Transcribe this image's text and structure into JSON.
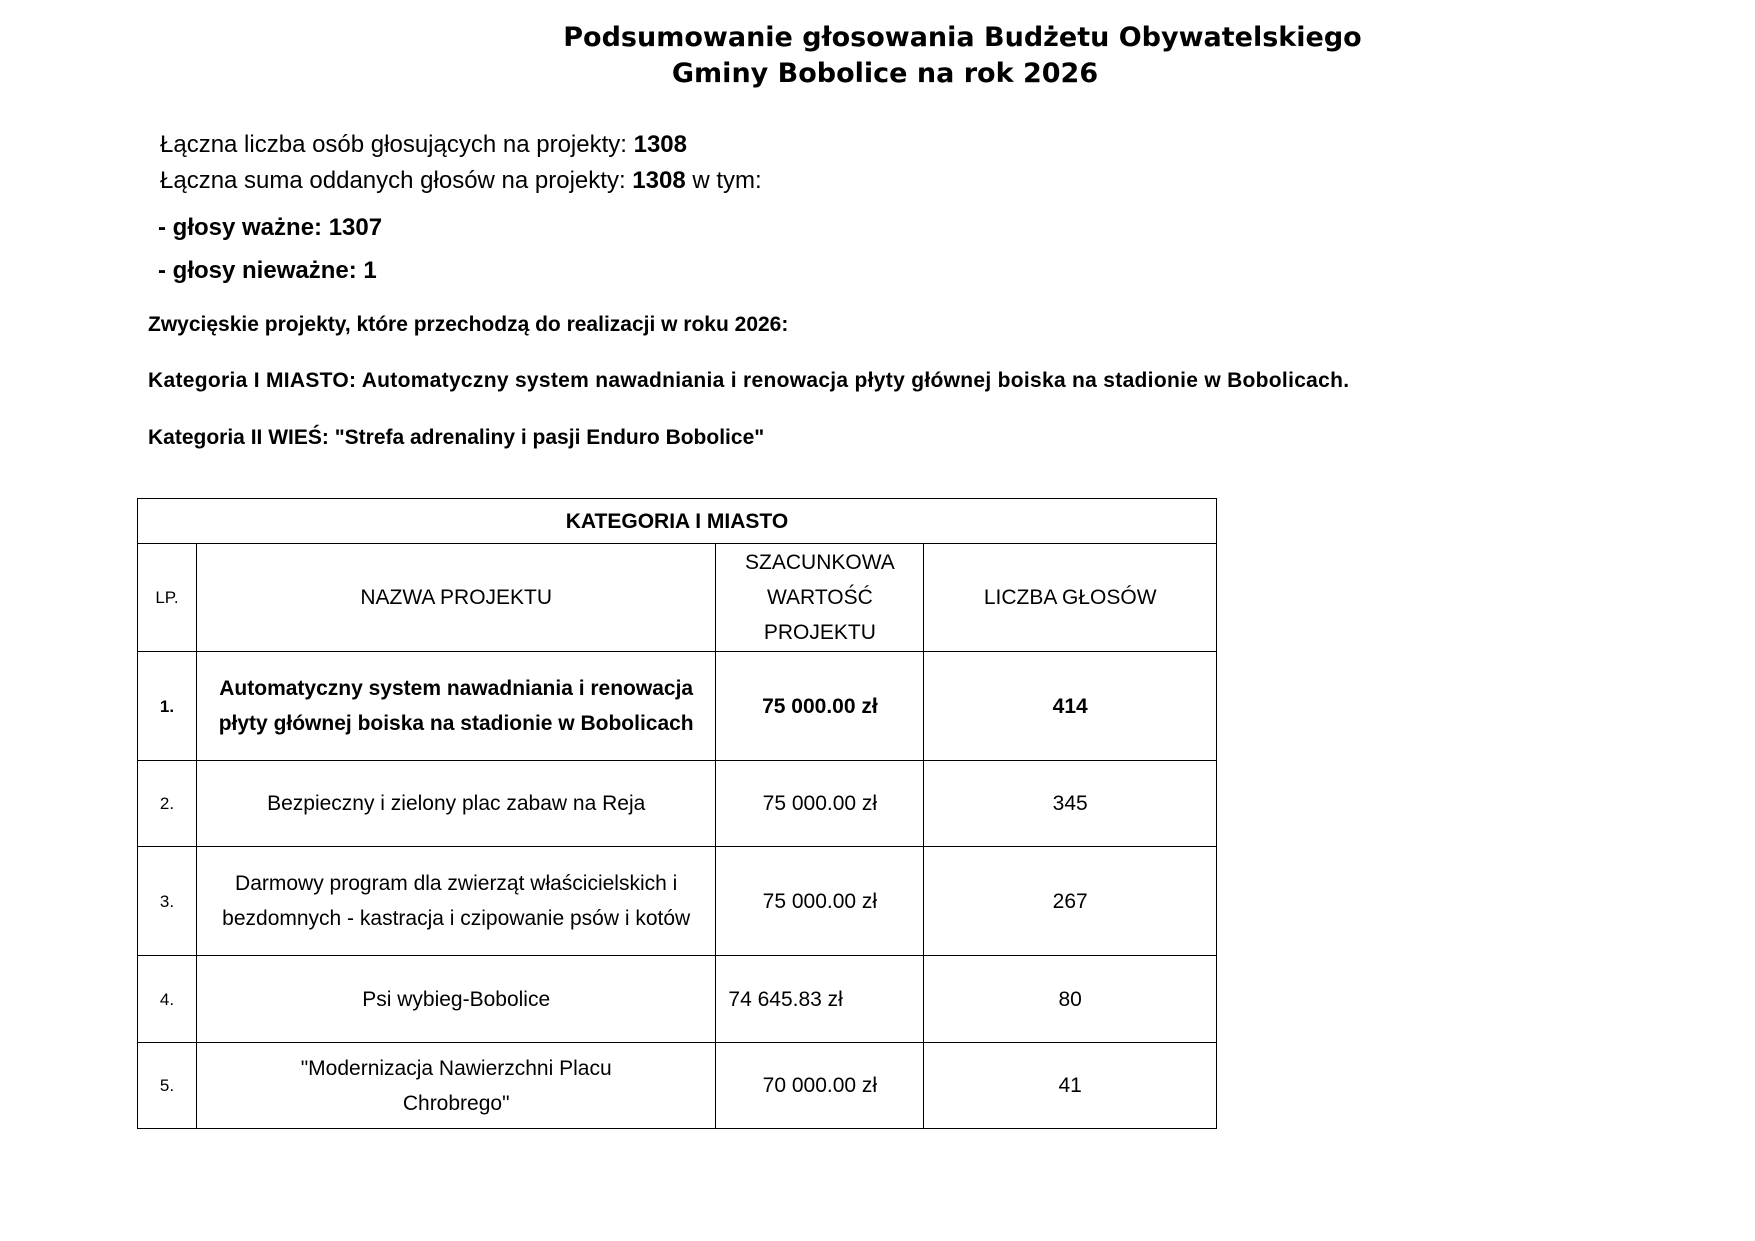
{
  "title": {
    "line1": "Podsumowanie głosowania Budżetu Obywatelskiego",
    "line2": "Gminy Bobolice na rok 2026"
  },
  "summary": {
    "voters_label": "Łączna liczba osób głosujących na projekty: ",
    "voters_value": "1308",
    "votes_label": "Łączna suma oddanych głosów na projekty:  ",
    "votes_value": "1308",
    "votes_suffix": " w tym:",
    "valid_label": "- głosy ważne: 1307",
    "invalid_label": "- głosy nieważne: 1"
  },
  "winners": {
    "heading": "Zwycięskie projekty, które przechodzą do realizacji w roku 2026:",
    "cat1": "Kategoria I MIASTO: Automatyczny system nawadniania i renowacja płyty głównej boiska na stadionie w Bobolicach.",
    "cat2": "Kategoria II WIEŚ: \"Strefa adrenaliny i pasji Enduro Bobolice\""
  },
  "table": {
    "caption": "KATEGORIA I MIASTO",
    "headers": {
      "lp": "LP.",
      "name": "NAZWA PROJEKTU",
      "value": "SZACUNKOWA WARTOŚĆ PROJEKTU",
      "votes": "LICZBA GŁOSÓW"
    },
    "rows": [
      {
        "lp": "1.",
        "name": "Automatyczny system nawadniania i renowacja płyty głównej boiska na stadionie w Bobolicach",
        "value": "75 000.00 zł",
        "votes": "414"
      },
      {
        "lp": "2.",
        "name": "Bezpieczny i zielony plac zabaw na Reja",
        "value": "75 000.00 zł",
        "votes": "345"
      },
      {
        "lp": "3.",
        "name": "Darmowy program dla zwierząt właścicielskich i bezdomnych - kastracja i czipowanie psów i kotów",
        "value": "75 000.00 zł",
        "votes": "267"
      },
      {
        "lp": "4.",
        "name": "Psi wybieg-Bobolice",
        "value": "74 645.83 zł",
        "votes": "80"
      },
      {
        "lp": "5.",
        "name": "\"Modernizacja Nawierzchni Placu Chrobrego\"",
        "value": "70 000.00 zł",
        "votes": "41"
      }
    ]
  }
}
